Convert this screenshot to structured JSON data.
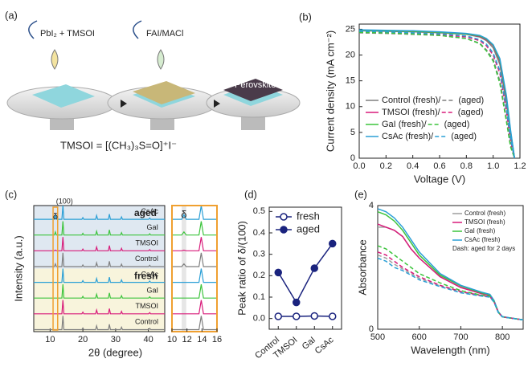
{
  "schematic": {
    "label": "(a)",
    "steps": [
      "PbI₂ + TMSOI",
      "FAI/MACl"
    ],
    "product": "Perovskite",
    "formula": "TMSOI = [(CH₃)₃S=O]⁺I⁻"
  },
  "chart_data": [
    {
      "type": "line",
      "label": "(b)",
      "xlabel": "Voltage (V)",
      "ylabel": "Current density (mA cm⁻²)",
      "xlim": [
        0,
        1.2
      ],
      "xticks": [
        {
          "value": 0,
          "label": "0.0"
        },
        0.2,
        0.4,
        0.6,
        0.8,
        {
          "value": 1,
          "label": "1.0"
        },
        1.2
      ],
      "ylim": [
        0,
        26
      ],
      "yticks": [
        0,
        5,
        10,
        15,
        20,
        25
      ],
      "legend": "lower left",
      "x": [
        0,
        0.2,
        0.4,
        0.6,
        0.8,
        0.9,
        0.95,
        1.0,
        1.05,
        1.1,
        1.13,
        1.16
      ],
      "series": [
        {
          "name": "Control (fresh)/",
          "color": "#7f7f7f",
          "style": "solid",
          "values": [
            24.7,
            24.6,
            24.5,
            24.3,
            24.0,
            23.5,
            22.8,
            21.4,
            18.2,
            10.5,
            4.5,
            0
          ]
        },
        {
          "name": "(aged)",
          "color": "#7f7f7f",
          "style": "dashed",
          "values": [
            24.3,
            24.2,
            24.0,
            23.8,
            23.2,
            22.3,
            21.0,
            19.2,
            15.0,
            7.5,
            2.5,
            0
          ]
        },
        {
          "name": "TMSOI (fresh)/",
          "color": "#d81b7a",
          "style": "solid",
          "values": [
            24.8,
            24.7,
            24.6,
            24.4,
            24.1,
            23.6,
            23.0,
            21.8,
            18.8,
            11.0,
            5.0,
            0
          ]
        },
        {
          "name": "(aged)",
          "color": "#d81b7a",
          "style": "dashed",
          "values": [
            24.5,
            24.4,
            24.2,
            24.0,
            23.5,
            22.8,
            21.8,
            20.0,
            16.5,
            9.0,
            3.5,
            0
          ]
        },
        {
          "name": "GaI (fresh)/",
          "color": "#3cc43c",
          "style": "solid",
          "values": [
            24.8,
            24.7,
            24.6,
            24.4,
            24.1,
            23.7,
            23.1,
            21.9,
            19.0,
            11.5,
            5.2,
            0
          ]
        },
        {
          "name": "(aged)",
          "color": "#3cc43c",
          "style": "dashed",
          "values": [
            24.4,
            24.3,
            24.1,
            23.8,
            23.2,
            22.2,
            20.8,
            18.8,
            14.5,
            7.0,
            2.2,
            0
          ]
        },
        {
          "name": "CsAc (fresh)/",
          "color": "#2a9fd6",
          "style": "solid",
          "values": [
            24.9,
            24.8,
            24.7,
            24.5,
            24.2,
            23.8,
            23.2,
            22.0,
            19.3,
            12.0,
            5.5,
            0
          ]
        },
        {
          "name": "(aged)",
          "color": "#2a9fd6",
          "style": "dashed",
          "values": [
            24.6,
            24.5,
            24.3,
            24.1,
            23.7,
            23.0,
            22.1,
            20.4,
            17.0,
            9.5,
            3.8,
            0
          ]
        }
      ]
    },
    {
      "type": "spectra",
      "label": "(c)",
      "xlabel": "2θ (degree)",
      "ylabel": "Intensity (a.u.)",
      "xlim": [
        5,
        45
      ],
      "xticks": [
        10,
        20,
        30,
        40
      ],
      "inset_xlim": [
        10,
        16
      ],
      "inset_xticks": [
        10,
        12,
        14,
        16
      ],
      "groups": [
        "aged",
        "fresh"
      ],
      "annotations": [
        "(100)",
        "δ"
      ],
      "inset_annotation": "δ",
      "x": [
        5,
        11.3,
        11.6,
        11.9,
        13.6,
        13.9,
        14.2,
        19.7,
        20.0,
        20.3,
        23.9,
        24.2,
        24.5,
        27.8,
        28.1,
        28.4,
        31.5,
        31.8,
        32.1,
        40.1,
        40.4,
        40.7,
        45
      ],
      "series": [
        {
          "name": "CsAc",
          "group": "aged",
          "color": "#2a9fd6",
          "values": [
            0.03,
            0.03,
            0.35,
            0.03,
            0.03,
            1,
            0.03,
            0.03,
            0.15,
            0.03,
            0.03,
            0.3,
            0.03,
            0.03,
            0.4,
            0.03,
            0.03,
            0.2,
            0.03,
            0.03,
            0.12,
            0.03,
            0.03
          ]
        },
        {
          "name": "GaI",
          "group": "aged",
          "color": "#3cc43c",
          "values": [
            0.03,
            0.03,
            0.25,
            0.03,
            0.03,
            1,
            0.03,
            0.03,
            0.15,
            0.03,
            0.03,
            0.3,
            0.03,
            0.03,
            0.4,
            0.03,
            0.03,
            0.2,
            0.03,
            0.03,
            0.12,
            0.03,
            0.03
          ]
        },
        {
          "name": "TMSOI",
          "group": "aged",
          "color": "#d81b7a",
          "values": [
            0.03,
            0.03,
            0.08,
            0.03,
            0.03,
            1,
            0.03,
            0.03,
            0.15,
            0.03,
            0.03,
            0.3,
            0.03,
            0.03,
            0.4,
            0.03,
            0.03,
            0.2,
            0.03,
            0.03,
            0.12,
            0.03,
            0.03
          ]
        },
        {
          "name": "Control",
          "group": "aged",
          "color": "#7f7f7f",
          "values": [
            0.03,
            0.03,
            0.22,
            0.03,
            0.03,
            1,
            0.03,
            0.03,
            0.15,
            0.03,
            0.03,
            0.3,
            0.03,
            0.03,
            0.4,
            0.03,
            0.03,
            0.2,
            0.03,
            0.03,
            0.12,
            0.03,
            0.03
          ]
        },
        {
          "name": "CsAc",
          "group": "fresh",
          "color": "#2a9fd6",
          "values": [
            0.03,
            0.03,
            0.03,
            0.03,
            0.03,
            1,
            0.03,
            0.03,
            0.15,
            0.03,
            0.03,
            0.3,
            0.03,
            0.03,
            0.4,
            0.03,
            0.03,
            0.2,
            0.03,
            0.03,
            0.12,
            0.03,
            0.03
          ]
        },
        {
          "name": "GaI",
          "group": "fresh",
          "color": "#3cc43c",
          "values": [
            0.03,
            0.03,
            0.03,
            0.03,
            0.03,
            1,
            0.03,
            0.03,
            0.15,
            0.03,
            0.03,
            0.3,
            0.03,
            0.03,
            0.4,
            0.03,
            0.03,
            0.2,
            0.03,
            0.03,
            0.12,
            0.03,
            0.03
          ]
        },
        {
          "name": "TMSOI",
          "group": "fresh",
          "color": "#d81b7a",
          "values": [
            0.03,
            0.03,
            0.03,
            0.03,
            0.03,
            1,
            0.03,
            0.03,
            0.15,
            0.03,
            0.03,
            0.3,
            0.03,
            0.03,
            0.4,
            0.03,
            0.03,
            0.2,
            0.03,
            0.03,
            0.12,
            0.03,
            0.03
          ]
        },
        {
          "name": "Control",
          "group": "fresh",
          "color": "#7f7f7f",
          "values": [
            0.03,
            0.03,
            0.03,
            0.03,
            0.03,
            1,
            0.03,
            0.03,
            0.15,
            0.03,
            0.03,
            0.3,
            0.03,
            0.03,
            0.4,
            0.03,
            0.03,
            0.2,
            0.03,
            0.03,
            0.12,
            0.03,
            0.03
          ]
        }
      ]
    },
    {
      "type": "line",
      "label": "(d)",
      "ylabel": "Peak ratio of δ/(100)",
      "categories": [
        "Control",
        "TMSOI",
        "GaI",
        "CsAc"
      ],
      "ylim": [
        -0.05,
        0.52
      ],
      "yticks": [
        {
          "value": 0,
          "label": "0.0"
        },
        0.1,
        0.2,
        0.3,
        0.4,
        0.5
      ],
      "legend": "upper left",
      "series": [
        {
          "name": "fresh",
          "color": "#1a237e",
          "marker_fill": "#ffffff",
          "values": [
            0.01,
            0.01,
            0.012,
            0.01
          ]
        },
        {
          "name": "aged",
          "color": "#1a237e",
          "marker_fill": "#1a237e",
          "values": [
            0.215,
            0.075,
            0.235,
            0.35
          ]
        }
      ]
    },
    {
      "type": "line",
      "label": "(e)",
      "xlabel": "Wavelength (nm)",
      "ylabel": "Absorbance",
      "xlim": [
        500,
        850
      ],
      "xticks": [
        500,
        600,
        700,
        800
      ],
      "ylim": [
        0,
        4
      ],
      "yticks": [
        0,
        4
      ],
      "legend": "upper right",
      "note": "Dash: aged for 2 days",
      "x": [
        500,
        520,
        540,
        560,
        580,
        600,
        650,
        700,
        750,
        770,
        780,
        790,
        800,
        850
      ],
      "series": [
        {
          "name": "Control (fresh)",
          "color": "#9e9e9e",
          "style": "solid",
          "values": [
            3.3,
            3.3,
            3.2,
            3.0,
            2.6,
            2.3,
            1.7,
            1.35,
            1.15,
            1.1,
            0.9,
            0.55,
            0.4,
            0.3
          ]
        },
        {
          "name": "TMSOI (fresh)",
          "color": "#d81b7a",
          "style": "solid",
          "values": [
            3.4,
            3.3,
            3.2,
            3.0,
            2.6,
            2.3,
            1.7,
            1.35,
            1.15,
            1.1,
            0.9,
            0.55,
            0.4,
            0.3
          ]
        },
        {
          "name": "GaI (fresh)",
          "color": "#3cc43c",
          "style": "solid",
          "values": [
            3.8,
            3.7,
            3.5,
            3.2,
            2.8,
            2.4,
            1.75,
            1.4,
            1.18,
            1.12,
            0.92,
            0.56,
            0.4,
            0.3
          ]
        },
        {
          "name": "CsAc (fresh)",
          "color": "#2a9fd6",
          "style": "solid",
          "values": [
            3.9,
            3.8,
            3.6,
            3.3,
            2.9,
            2.5,
            1.8,
            1.42,
            1.2,
            1.13,
            0.93,
            0.57,
            0.41,
            0.3
          ]
        },
        {
          "color": "#9e9e9e",
          "style": "dashed",
          "values": [
            2.4,
            2.3,
            2.1,
            1.95,
            1.8,
            1.65,
            1.4,
            1.2,
            1.08,
            1.05,
            0.88,
            0.54,
            0.4,
            0.3
          ]
        },
        {
          "color": "#d81b7a",
          "style": "dashed",
          "values": [
            2.5,
            2.4,
            2.2,
            2.0,
            1.85,
            1.7,
            1.42,
            1.22,
            1.09,
            1.06,
            0.89,
            0.55,
            0.4,
            0.3
          ]
        },
        {
          "color": "#3cc43c",
          "style": "dashed",
          "values": [
            2.7,
            2.6,
            2.4,
            2.2,
            2.0,
            1.8,
            1.5,
            1.25,
            1.1,
            1.07,
            0.89,
            0.55,
            0.4,
            0.3
          ]
        },
        {
          "color": "#2a9fd6",
          "style": "dashed",
          "values": [
            2.3,
            2.2,
            2.0,
            1.9,
            1.75,
            1.6,
            1.38,
            1.18,
            1.07,
            1.04,
            0.87,
            0.54,
            0.4,
            0.3
          ]
        }
      ]
    }
  ]
}
